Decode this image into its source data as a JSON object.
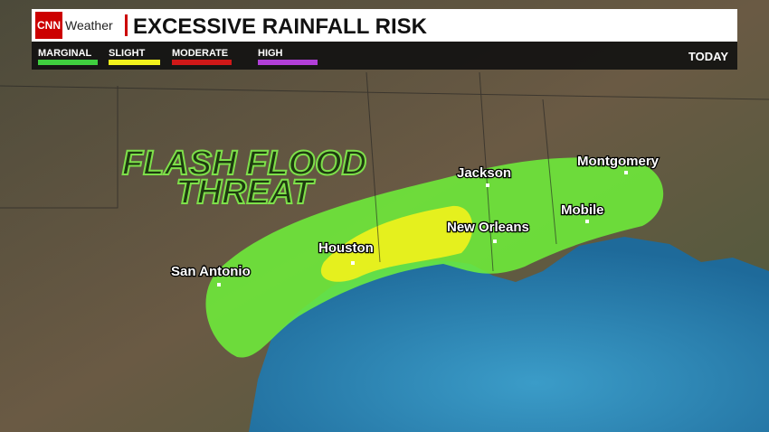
{
  "header": {
    "brand": "CNN",
    "section": "Weather",
    "title": "EXCESSIVE RAINFALL RISK",
    "period": "TODAY"
  },
  "legend": [
    {
      "label": "MARGINAL",
      "color": "#3fcf3f"
    },
    {
      "label": "SLIGHT",
      "color": "#f2f21c"
    },
    {
      "label": "MODERATE",
      "color": "#d01818"
    },
    {
      "label": "HIGH",
      "color": "#b13fd8"
    }
  ],
  "overlay": {
    "line1": "FLASH FLOOD",
    "line2": "THREAT"
  },
  "cities": [
    "Jackson",
    "Montgomery",
    "Mobile",
    "New Orleans",
    "Houston",
    "San Antonio"
  ]
}
